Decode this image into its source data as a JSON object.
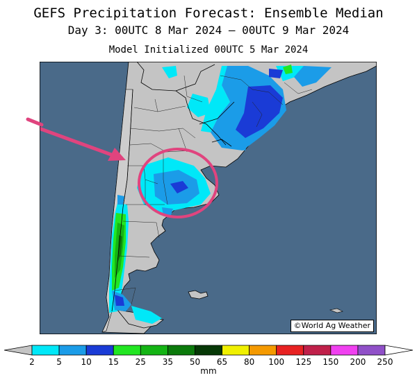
{
  "header": {
    "title": "GEFS Precipitation Forecast: Ensemble Median",
    "subtitle": "Day 3: 00UTC 8 Mar 2024 — 00UTC 9 Mar 2024",
    "init": "Model Initialized 00UTC 5 Mar 2024"
  },
  "map": {
    "credit": "©World Ag Weather",
    "ocean_color": "#4a6a89",
    "land_color": "#c4c4c4",
    "annotation_color": "#e0447e",
    "annotation_icons": [
      "arrow-icon",
      "circle-highlight-icon"
    ]
  },
  "legend": {
    "units": "mm",
    "labels": [
      "2",
      "5",
      "10",
      "15",
      "25",
      "35",
      "50",
      "65",
      "80",
      "100",
      "125",
      "150",
      "200",
      "250"
    ],
    "colors": [
      "#00e8f8",
      "#1b9ce8",
      "#1a3bd6",
      "#22e622",
      "#14b414",
      "#0b7a0b",
      "#063806",
      "#f0f000",
      "#f59a00",
      "#e82222",
      "#c0204a",
      "#f040f0",
      "#9050c8"
    ]
  }
}
